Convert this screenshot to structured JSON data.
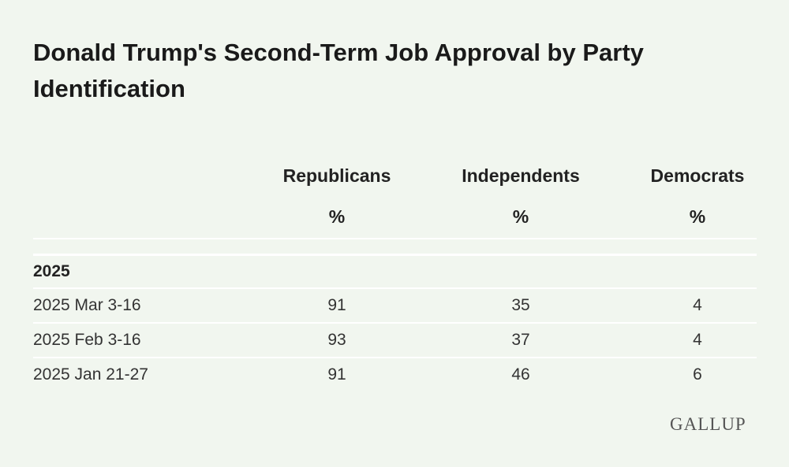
{
  "chart_data": {
    "type": "table",
    "title": "Donald Trump's Second-Term Job Approval by Party Identification",
    "columns": [
      "Republicans",
      "Independents",
      "Democrats"
    ],
    "units": [
      "%",
      "%",
      "%"
    ],
    "section": "2025",
    "rows": [
      {
        "label": "2025 Mar 3-16",
        "values": [
          "91",
          "35",
          "4"
        ]
      },
      {
        "label": "2025 Feb 3-16",
        "values": [
          "93",
          "37",
          "4"
        ]
      },
      {
        "label": "2025 Jan 21-27",
        "values": [
          "91",
          "46",
          "6"
        ]
      }
    ]
  },
  "source": "GALLUP",
  "colors": {
    "background": "#f1f6ef",
    "rule": "#ffffff",
    "text": "#222222"
  }
}
